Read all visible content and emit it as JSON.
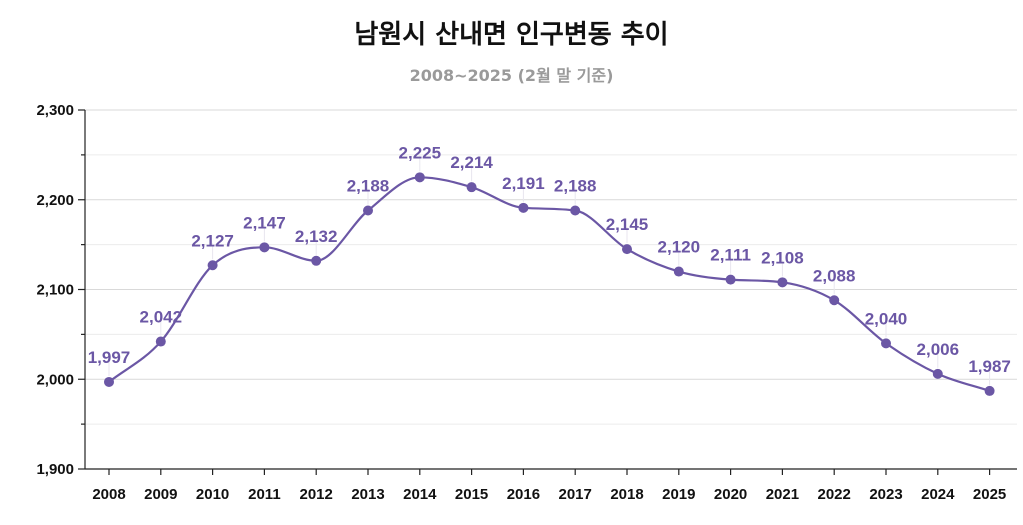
{
  "colors": {
    "series": "#6b57a5",
    "grid": "#d9d9d9",
    "axis": "#222222"
  },
  "chart_data": {
    "type": "line",
    "title": "남원시 산내면 인구변동 추이",
    "subtitle": "2008~2025 (2월 말 기준)",
    "xlabel": "",
    "ylabel": "",
    "x": [
      "2008",
      "2009",
      "2010",
      "2011",
      "2012",
      "2013",
      "2014",
      "2015",
      "2016",
      "2017",
      "2018",
      "2019",
      "2020",
      "2021",
      "2022",
      "2023",
      "2024",
      "2025"
    ],
    "series": [
      {
        "values": [
          1997,
          2042,
          2127,
          2147,
          2132,
          2188,
          2225,
          2214,
          2191,
          2188,
          2145,
          2120,
          2111,
          2108,
          2088,
          2040,
          2006,
          1987
        ],
        "labels": [
          "1,997",
          "2,042",
          "2,127",
          "2,147",
          "2,132",
          "2,188",
          "2,225",
          "2,214",
          "2,191",
          "2,188",
          "2,145",
          "2,120",
          "2,111",
          "2,108",
          "2,088",
          "2,040",
          "2,006",
          "1,987"
        ]
      }
    ],
    "ylim": [
      1900,
      2300
    ],
    "yticks": [
      1900,
      2000,
      2100,
      2200,
      2300
    ],
    "ytick_labels": [
      "1,900",
      "2,000",
      "2,100",
      "2,200",
      "2,300"
    ],
    "grid": true,
    "legend": "none",
    "smooth": true
  }
}
